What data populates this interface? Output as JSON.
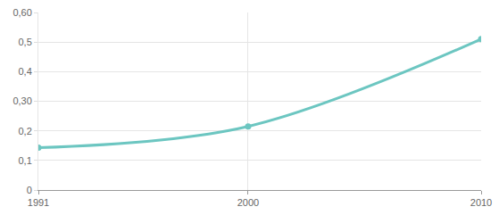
{
  "chart_data": {
    "type": "line",
    "x": [
      1991,
      2000,
      2010
    ],
    "values": [
      0.143,
      0.215,
      0.51
    ],
    "color": "#6cc6c1",
    "marker": "circle",
    "line_style": "smooth",
    "xlim": [
      1991,
      2010
    ],
    "xticks": [
      1991,
      2000,
      2010
    ],
    "ylim": [
      0,
      0.6
    ],
    "yticks": [
      0,
      {
        "value": 0.1,
        "label": "0,1"
      },
      {
        "value": 0.2,
        "label": "0,2"
      },
      {
        "value": 0.3,
        "label": "0,30"
      },
      {
        "value": 0.4,
        "label": "0,4"
      },
      {
        "value": 0.5,
        "label": "0,5"
      },
      {
        "value": 0.6,
        "label": "0,60"
      }
    ],
    "grid": true
  }
}
